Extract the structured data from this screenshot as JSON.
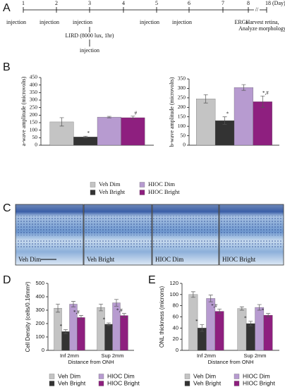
{
  "panel_labels": [
    "A",
    "B",
    "C",
    "D",
    "E"
  ],
  "timeline": {
    "days": [
      {
        "label": "1",
        "below": "injection"
      },
      {
        "label": "2",
        "below": "injection"
      },
      {
        "label": "3",
        "below": "injection"
      },
      {
        "label": "4",
        "below": null
      },
      {
        "label": "5",
        "below": "injection"
      },
      {
        "label": "6",
        "below": "injection"
      },
      {
        "label": "7",
        "below": null
      },
      {
        "label": "8",
        "below": "ERGs"
      },
      {
        "label": "18 (Day)",
        "below": null
      }
    ],
    "light": "LIRD (8000 lux, 1hr)",
    "light_injection": "injection",
    "end_note": [
      "Harvest retina,",
      "Analyze morphology"
    ]
  },
  "histology": {
    "images": [
      "Veh Dim",
      "Veh Bright",
      "HIOC Dim",
      "HIOC Bright"
    ]
  },
  "chart_data": [
    {
      "type": "bar",
      "ylabel": "a-wave amplitude (microvolts)",
      "categories": [
        null
      ],
      "ylim": [
        0,
        450
      ],
      "yticks": [
        0,
        50,
        100,
        150,
        200,
        250,
        300,
        350,
        400,
        450
      ],
      "legend": "bottom",
      "series": [
        {
          "name": "Veh Dim",
          "color": "#c4c4c4",
          "values": [
            155
          ],
          "errors": [
            28
          ],
          "significance": [
            null
          ]
        },
        {
          "name": "Veh Bright",
          "color": "#333333",
          "values": [
            55
          ],
          "errors": [
            5
          ],
          "significance": [
            "*"
          ]
        },
        {
          "name": "HIOC Dim",
          "color": "#b79bd0",
          "values": [
            187
          ],
          "errors": [
            5
          ],
          "significance": [
            null
          ]
        },
        {
          "name": "HIOC Bright",
          "color": "#8e1f7f",
          "values": [
            183
          ],
          "errors": [
            10
          ],
          "significance": [
            "#"
          ]
        }
      ]
    },
    {
      "type": "bar",
      "ylabel": "b-wave amplitude (microvolts)",
      "categories": [
        null
      ],
      "ylim": [
        0,
        350
      ],
      "yticks": [
        0,
        50,
        100,
        150,
        200,
        250,
        300,
        350
      ],
      "series": [
        {
          "name": "Veh Dim",
          "color": "#c4c4c4",
          "values": [
            245
          ],
          "errors": [
            22
          ],
          "significance": [
            null
          ]
        },
        {
          "name": "Veh Bright",
          "color": "#333333",
          "values": [
            130
          ],
          "errors": [
            20
          ],
          "significance": [
            "*"
          ]
        },
        {
          "name": "HIOC Dim",
          "color": "#b79bd0",
          "values": [
            305
          ],
          "errors": [
            15
          ],
          "significance": [
            null
          ]
        },
        {
          "name": "HIOC Bright",
          "color": "#8e1f7f",
          "values": [
            230
          ],
          "errors": [
            30
          ],
          "significance": [
            "*,#"
          ]
        }
      ]
    },
    {
      "type": "bar",
      "ylabel": "Cell Density (cells/0.16mm²)",
      "xlabel": "Distance from ONH",
      "categories": [
        "Inf 2mm",
        "Sup 2mm"
      ],
      "ylim": [
        0,
        500
      ],
      "yticks": [
        0,
        100,
        200,
        300,
        400,
        500
      ],
      "legend": "bottom",
      "series": [
        {
          "name": "Veh Dim",
          "color": "#c4c4c4",
          "values": [
            315,
            320
          ],
          "errors": [
            30,
            25
          ],
          "significance": [
            null,
            null
          ]
        },
        {
          "name": "Veh Bright",
          "color": "#333333",
          "values": [
            140,
            195
          ],
          "errors": [
            15,
            10
          ],
          "significance": [
            "*",
            "*"
          ]
        },
        {
          "name": "HIOC Dim",
          "color": "#b79bd0",
          "values": [
            345,
            355
          ],
          "errors": [
            20,
            25
          ],
          "significance": [
            null,
            null
          ]
        },
        {
          "name": "HIOC Bright",
          "color": "#8e1f7f",
          "values": [
            245,
            260
          ],
          "errors": [
            15,
            15
          ],
          "significance": [
            "*,#",
            "*,#"
          ]
        }
      ]
    },
    {
      "type": "bar",
      "ylabel": "ONL thickness (microns)",
      "xlabel": "Distance from ONH",
      "categories": [
        "Inf 2mm",
        "Sup 2mm"
      ],
      "ylim": [
        0,
        120
      ],
      "yticks": [
        0,
        20,
        40,
        60,
        80,
        100,
        120
      ],
      "legend": "bottom",
      "series": [
        {
          "name": "Veh Dim",
          "color": "#c4c4c4",
          "values": [
            100,
            75
          ],
          "errors": [
            5,
            3
          ],
          "significance": [
            null,
            null
          ]
        },
        {
          "name": "Veh Bright",
          "color": "#333333",
          "values": [
            40,
            48
          ],
          "errors": [
            6,
            4
          ],
          "significance": [
            "*",
            "*"
          ]
        },
        {
          "name": "HIOC Dim",
          "color": "#b79bd0",
          "values": [
            93,
            77
          ],
          "errors": [
            6,
            5
          ],
          "significance": [
            null,
            null
          ]
        },
        {
          "name": "HIOC Bright",
          "color": "#8e1f7f",
          "values": [
            70,
            63
          ],
          "errors": [
            4,
            3
          ],
          "significance": [
            "*,#",
            "*"
          ]
        }
      ]
    }
  ]
}
